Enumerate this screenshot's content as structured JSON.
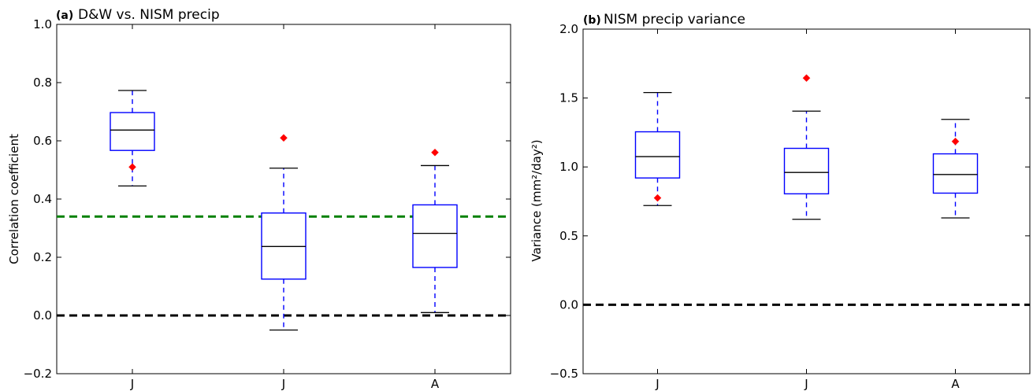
{
  "chart_data": [
    {
      "type": "box",
      "panel_label": "(a)",
      "title": "D&W vs. NISM precip",
      "xlabel": "",
      "ylabel": "Correlation coefficient",
      "ylim": [
        -0.2,
        1.0
      ],
      "yticks": [
        -0.2,
        0.0,
        0.2,
        0.4,
        0.6,
        0.8,
        1.0
      ],
      "ytick_labels": [
        "−0.2",
        "0.0",
        "0.2",
        "0.4",
        "0.6",
        "0.8",
        "1.0"
      ],
      "categories": [
        "J",
        "J",
        "A"
      ],
      "boxes": [
        {
          "whisker_low": 0.445,
          "q1": 0.567,
          "median": 0.637,
          "q3": 0.697,
          "whisker_high": 0.773,
          "markers": [
            0.51
          ]
        },
        {
          "whisker_low": -0.05,
          "q1": 0.125,
          "median": 0.237,
          "q3": 0.352,
          "whisker_high": 0.506,
          "markers": [
            0.61
          ]
        },
        {
          "whisker_low": 0.01,
          "q1": 0.165,
          "median": 0.282,
          "q3": 0.38,
          "whisker_high": 0.515,
          "markers": [
            0.56
          ]
        }
      ],
      "reference_lines": [
        {
          "y": 0.34,
          "color": "#008000",
          "style": "dashed"
        },
        {
          "y": 0.0,
          "color": "#000000",
          "style": "dashed"
        }
      ],
      "colors": {
        "box": "#0000ff",
        "median": "#000000",
        "whisker": "#0000ff",
        "cap": "#000000",
        "marker": "#ff0000"
      },
      "grid": false
    },
    {
      "type": "box",
      "panel_label": "(b)",
      "title": "NISM precip variance",
      "xlabel": "",
      "ylabel": "Variance (mm²/day²)",
      "ylim": [
        -0.5,
        2.0
      ],
      "yticks": [
        -0.5,
        0.0,
        0.5,
        1.0,
        1.5,
        2.0
      ],
      "ytick_labels": [
        "−0.5",
        "0.0",
        "0.5",
        "1.0",
        "1.5",
        "2.0"
      ],
      "categories": [
        "J",
        "J",
        "A"
      ],
      "boxes": [
        {
          "whisker_low": 0.72,
          "q1": 0.92,
          "median": 1.075,
          "q3": 1.255,
          "whisker_high": 1.54,
          "markers": [
            0.775
          ]
        },
        {
          "whisker_low": 0.62,
          "q1": 0.805,
          "median": 0.96,
          "q3": 1.135,
          "whisker_high": 1.405,
          "markers": [
            1.645
          ]
        },
        {
          "whisker_low": 0.63,
          "q1": 0.81,
          "median": 0.945,
          "q3": 1.095,
          "whisker_high": 1.345,
          "markers": [
            1.185
          ]
        }
      ],
      "reference_lines": [
        {
          "y": 0.0,
          "color": "#000000",
          "style": "dashed"
        }
      ],
      "colors": {
        "box": "#0000ff",
        "median": "#000000",
        "whisker": "#0000ff",
        "cap": "#000000",
        "marker": "#ff0000"
      },
      "grid": false
    }
  ]
}
